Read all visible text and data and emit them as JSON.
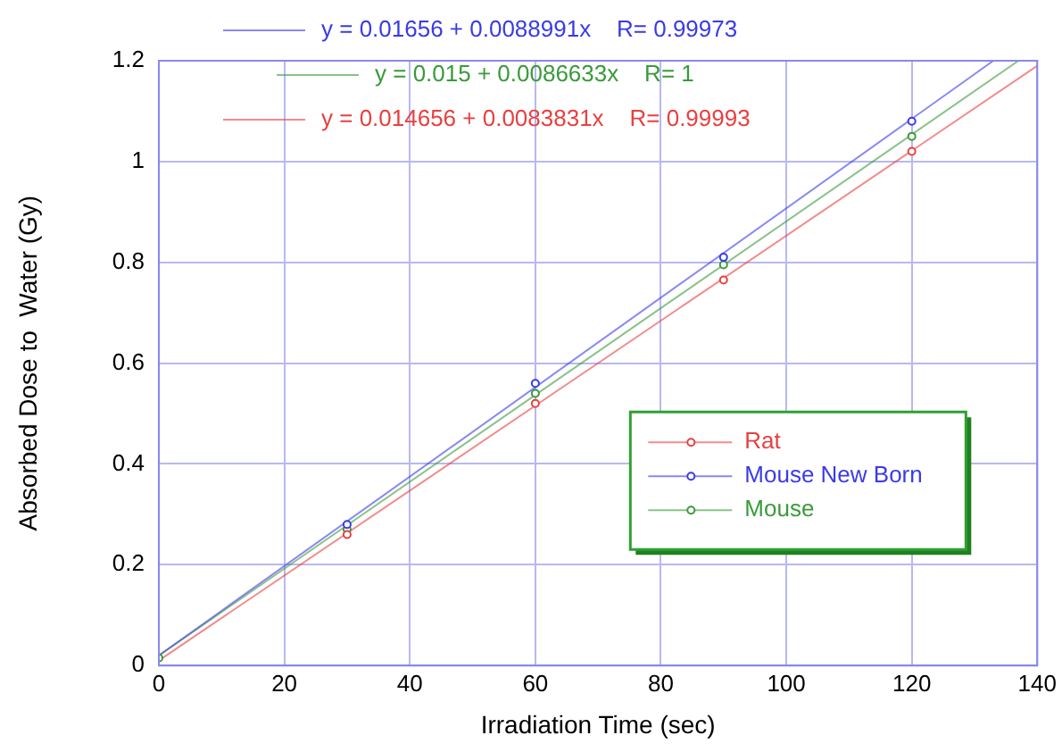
{
  "chart_data": {
    "type": "scatter",
    "xlabel": "Irradiation Time (sec)",
    "ylabel": "Absorbed Dose to  Water (Gy)",
    "xlim": [
      0,
      140
    ],
    "xticks": [
      0,
      20,
      40,
      60,
      80,
      100,
      120,
      140
    ],
    "ylim": [
      0,
      1.2
    ],
    "yticks": [
      0,
      0.2,
      0.4,
      0.6,
      0.8,
      1,
      1.2
    ],
    "grid": true,
    "legend": "bottom right",
    "marker": "circle",
    "series": [
      {
        "name": "Rat",
        "color": "#e84040",
        "x": [
          30,
          60,
          90,
          120
        ],
        "values": [
          0.26,
          0.52,
          0.765,
          1.02
        ]
      },
      {
        "name": "Mouse New Born",
        "color": "#3a3ae8",
        "x": [
          30,
          60,
          90,
          120
        ],
        "values": [
          0.28,
          0.56,
          0.81,
          1.08
        ]
      },
      {
        "name": "Mouse",
        "color": "#3a9a3a",
        "x": [
          0,
          30,
          60,
          90,
          120
        ],
        "values": [
          0.015,
          0.27,
          0.54,
          0.795,
          1.05
        ]
      },
      {
        "type": "line",
        "marker": "none",
        "color": "#3a3ae8",
        "x": [
          0,
          133
        ],
        "values": [
          0.02,
          1.2
        ]
      },
      {
        "type": "line",
        "marker": "none",
        "color": "#3a9a3a",
        "x": [
          0,
          137
        ],
        "values": [
          0.02,
          1.2
        ]
      },
      {
        "type": "line",
        "marker": "none",
        "color": "#e84040",
        "x": [
          0,
          140
        ],
        "values": [
          0.01,
          1.19
        ]
      }
    ],
    "annotations": [
      "y = 0.01656 + 0.0088991x    R= 0.99973",
      "y = 0.015 + 0.0086633x    R= 1",
      "y = 0.014656 + 0.0083831x    R= 0.99993"
    ]
  }
}
